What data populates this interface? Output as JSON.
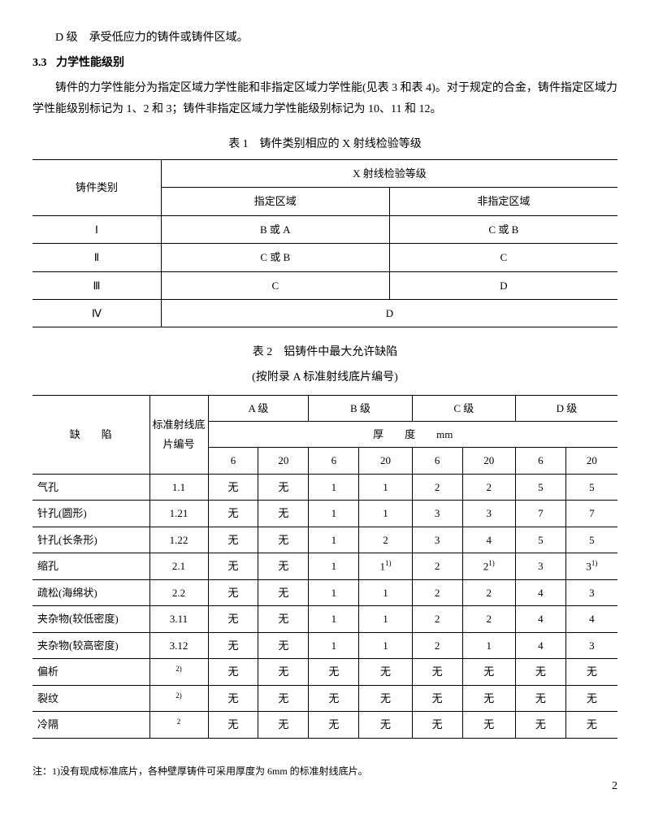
{
  "intro": {
    "line1": "D 级　承受低应力的铸件或铸件区域。",
    "section_no": "3.3",
    "section_title": "力学性能级别",
    "body": "铸件的力学性能分为指定区域力学性能和非指定区域力学性能(见表 3 和表 4)。对于规定的合金，铸件指定区域力学性能级别标记为 1、2 和 3；铸件非指定区域力学性能级别标记为 10、11 和 12。"
  },
  "table1": {
    "title": "表 1　铸件类别相应的 X 射线检验等级",
    "col1": "铸件类别",
    "group": "X 射线检验等级",
    "sub1": "指定区域",
    "sub2": "非指定区域",
    "rows": [
      {
        "cat": "Ⅰ",
        "a": "B 或 A",
        "b": "C 或 B"
      },
      {
        "cat": "Ⅱ",
        "a": "C 或 B",
        "b": "C"
      },
      {
        "cat": "Ⅲ",
        "a": "C",
        "b": "D"
      },
      {
        "cat": "Ⅳ",
        "merged": "D"
      }
    ]
  },
  "table2": {
    "title": "表 2　铝铸件中最大允许缺陷",
    "subtitle": "(按附录 A 标准射线底片编号)",
    "col_defect": "缺　　陷",
    "col_ref": "标准射线底片编号",
    "grades": [
      "A 级",
      "B 级",
      "C 级",
      "D 级"
    ],
    "thick_label": "厚　　度　　mm",
    "thick_vals": [
      "6",
      "20",
      "6",
      "20",
      "6",
      "20",
      "6",
      "20"
    ],
    "rows": [
      {
        "name": "气孔",
        "ref": "1.1",
        "v": [
          "无",
          "无",
          "1",
          "1",
          "2",
          "2",
          "5",
          "5"
        ]
      },
      {
        "name": "针孔(圆形)",
        "ref": "1.21",
        "v": [
          "无",
          "无",
          "1",
          "1",
          "3",
          "3",
          "7",
          "7"
        ]
      },
      {
        "name": "针孔(长条形)",
        "ref": "1.22",
        "v": [
          "无",
          "无",
          "1",
          "2",
          "3",
          "4",
          "5",
          "5"
        ]
      },
      {
        "name": "缩孔",
        "ref": "2.1",
        "v": [
          "无",
          "无",
          "1",
          "1<sup>1)</sup>",
          "2",
          "2<sup>1)</sup>",
          "3",
          "3<sup>1)</sup>"
        ]
      },
      {
        "name": "疏松(海绵状)",
        "ref": "2.2",
        "v": [
          "无",
          "无",
          "1",
          "1",
          "2",
          "2",
          "4",
          "3"
        ]
      },
      {
        "name": "夹杂物(较低密度)",
        "ref": "3.11",
        "v": [
          "无",
          "无",
          "1",
          "1",
          "2",
          "2",
          "4",
          "4"
        ]
      },
      {
        "name": "夹杂物(较高密度)",
        "ref": "3.12",
        "v": [
          "无",
          "无",
          "1",
          "1",
          "2",
          "1",
          "4",
          "3"
        ]
      },
      {
        "name": "偏析",
        "ref": "<sup>2)</sup>",
        "v": [
          "无",
          "无",
          "无",
          "无",
          "无",
          "无",
          "无",
          "无"
        ]
      },
      {
        "name": "裂纹",
        "ref": "<sup>2)</sup>",
        "v": [
          "无",
          "无",
          "无",
          "无",
          "无",
          "无",
          "无",
          "无"
        ]
      },
      {
        "name": "冷隔",
        "ref": "<sup>2</sup>",
        "v": [
          "无",
          "无",
          "无",
          "无",
          "无",
          "无",
          "无",
          "无"
        ]
      }
    ]
  },
  "footnote": "注：1)没有现成标准底片，各种壁厚铸件可采用厚度为 6mm 的标准射线底片。",
  "page": "2"
}
